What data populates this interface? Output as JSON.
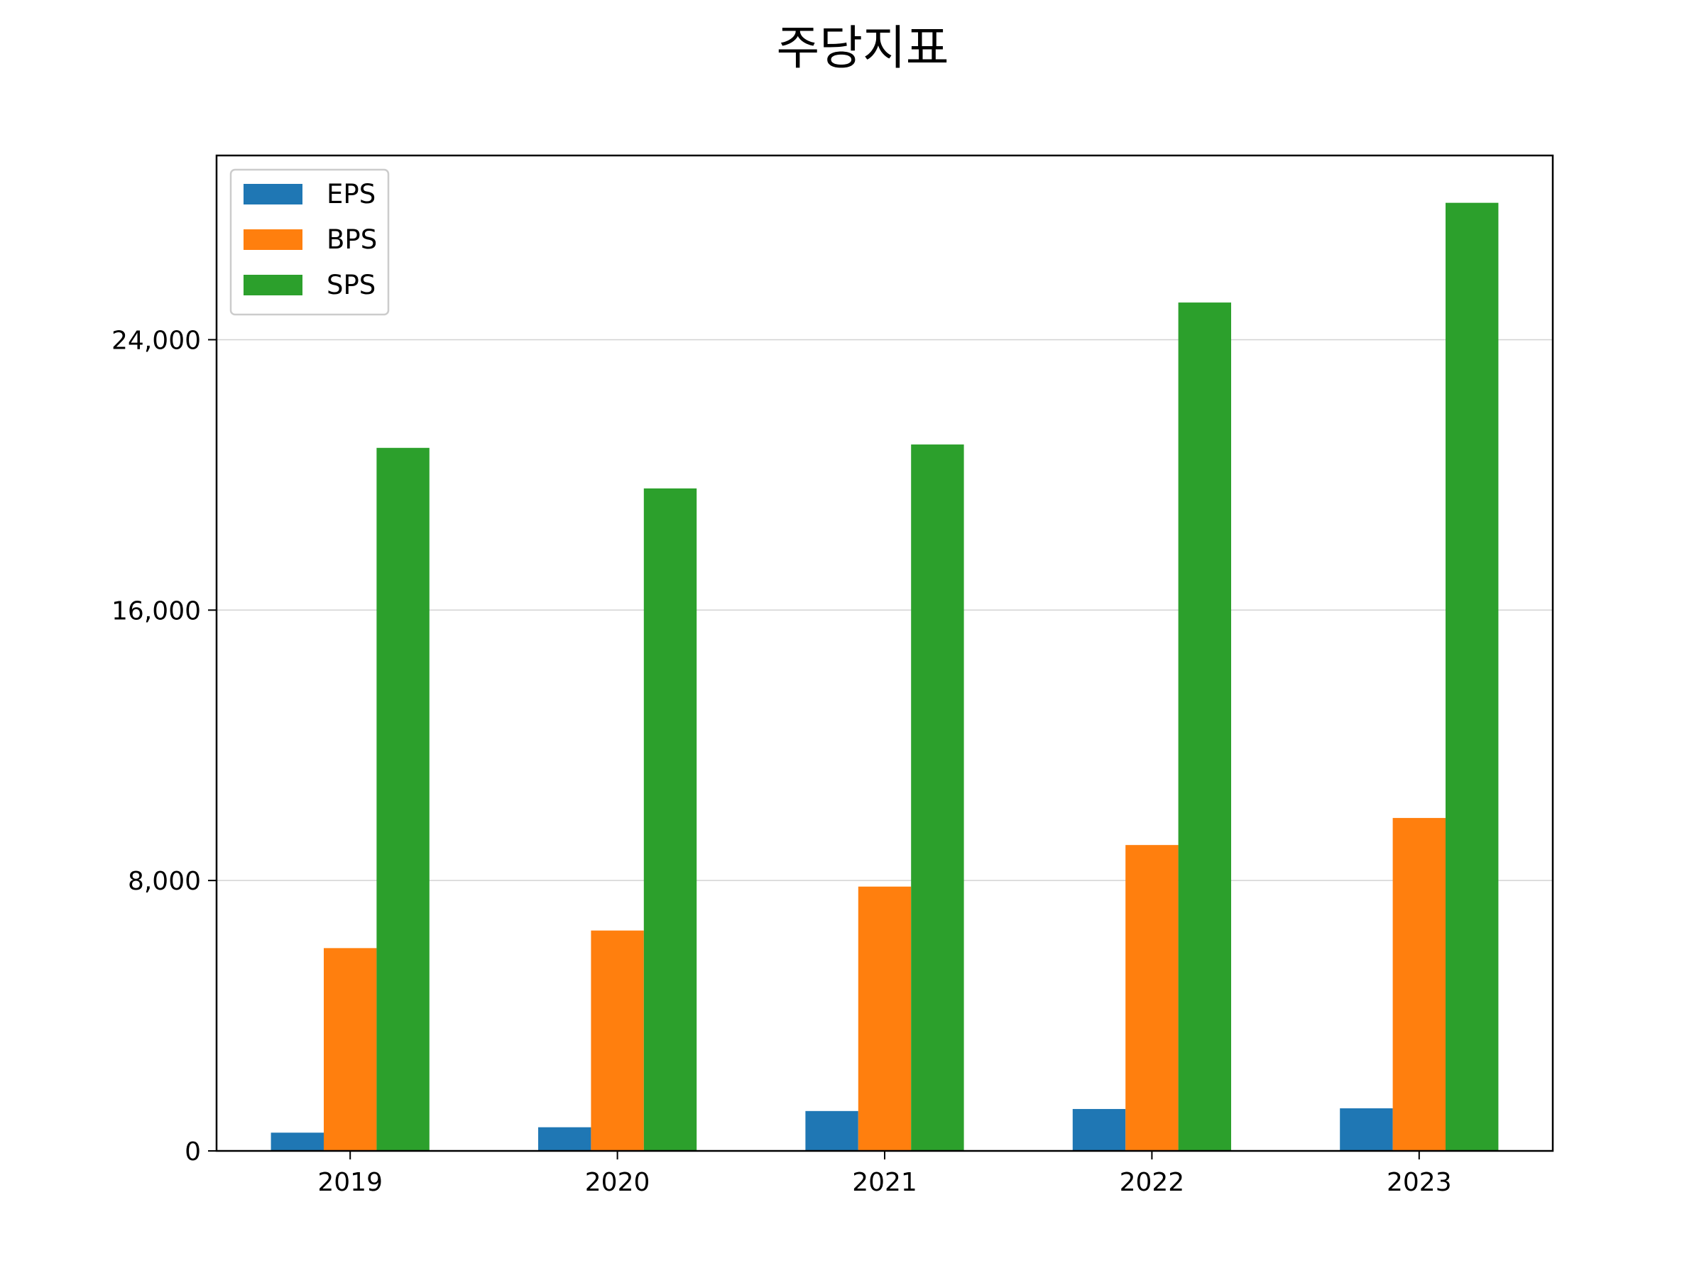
{
  "chart_data": {
    "type": "bar",
    "title": "주당지표",
    "xlabel": "",
    "ylabel": "",
    "categories": [
      "2019",
      "2020",
      "2021",
      "2022",
      "2023"
    ],
    "series": [
      {
        "name": "EPS",
        "color": "#1f77b4",
        "values": [
          540,
          700,
          1180,
          1240,
          1260
        ]
      },
      {
        "name": "BPS",
        "color": "#ff7f0e",
        "values": [
          6000,
          6520,
          7820,
          9050,
          9850
        ]
      },
      {
        "name": "SPS",
        "color": "#2ca02c",
        "values": [
          20800,
          19600,
          20900,
          25100,
          28050
        ]
      }
    ],
    "yticks": [
      0,
      8000,
      16000,
      24000
    ],
    "ytick_labels": [
      "0",
      "8,000",
      "16,000",
      "24,000"
    ],
    "ylim": [
      0,
      29450
    ],
    "grid": "y",
    "legend_position": "top-left"
  }
}
